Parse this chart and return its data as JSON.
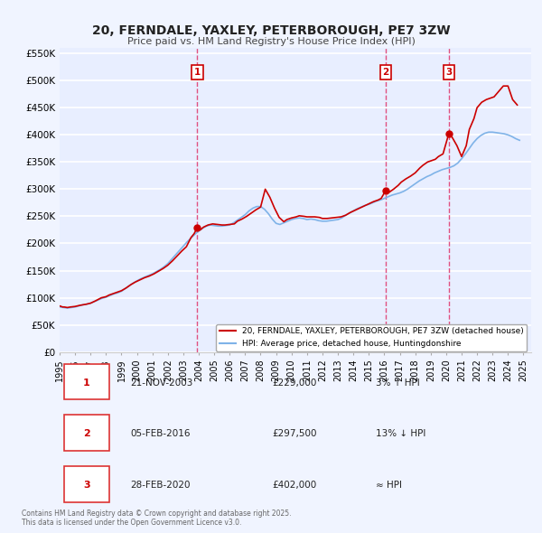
{
  "title": "20, FERNDALE, YAXLEY, PETERBOROUGH, PE7 3ZW",
  "subtitle": "Price paid vs. HM Land Registry's House Price Index (HPI)",
  "background_color": "#f0f4ff",
  "plot_bg_color": "#e8eeff",
  "grid_color": "#ffffff",
  "ylim": [
    0,
    560000
  ],
  "yticks": [
    0,
    50000,
    100000,
    150000,
    200000,
    250000,
    300000,
    350000,
    400000,
    450000,
    500000,
    550000
  ],
  "ytick_labels": [
    "£0",
    "£50K",
    "£100K",
    "£150K",
    "£200K",
    "£250K",
    "£300K",
    "£350K",
    "£400K",
    "£450K",
    "£500K",
    "£550K"
  ],
  "xmin": 1995.0,
  "xmax": 2025.5,
  "sale_color": "#cc0000",
  "hpi_color": "#7fb3e8",
  "marker_color": "#cc0000",
  "vline_color": "#e05080",
  "legend_label_sale": "20, FERNDALE, YAXLEY, PETERBOROUGH, PE7 3ZW (detached house)",
  "legend_label_hpi": "HPI: Average price, detached house, Huntingdonshire",
  "transactions": [
    {
      "num": 1,
      "date": 2003.9,
      "price": 229000,
      "x_vline": 2003.9
    },
    {
      "num": 2,
      "date": 2016.09,
      "price": 297500,
      "x_vline": 2016.09
    },
    {
      "num": 3,
      "date": 2020.17,
      "price": 402000,
      "x_vline": 2020.17
    }
  ],
  "table_rows": [
    {
      "num": "1",
      "date": "21-NOV-2003",
      "price": "£229,000",
      "hpi_rel": "3% ↑ HPI"
    },
    {
      "num": "2",
      "date": "05-FEB-2016",
      "price": "£297,500",
      "hpi_rel": "13% ↓ HPI"
    },
    {
      "num": "3",
      "date": "28-FEB-2020",
      "price": "£402,000",
      "hpi_rel": "≈ HPI"
    }
  ],
  "footnote": "Contains HM Land Registry data © Crown copyright and database right 2025.\nThis data is licensed under the Open Government Licence v3.0.",
  "hpi_data_x": [
    1995.0,
    1995.25,
    1995.5,
    1995.75,
    1996.0,
    1996.25,
    1996.5,
    1996.75,
    1997.0,
    1997.25,
    1997.5,
    1997.75,
    1998.0,
    1998.25,
    1998.5,
    1998.75,
    1999.0,
    1999.25,
    1999.5,
    1999.75,
    2000.0,
    2000.25,
    2000.5,
    2000.75,
    2001.0,
    2001.25,
    2001.5,
    2001.75,
    2002.0,
    2002.25,
    2002.5,
    2002.75,
    2003.0,
    2003.25,
    2003.5,
    2003.75,
    2004.0,
    2004.25,
    2004.5,
    2004.75,
    2005.0,
    2005.25,
    2005.5,
    2005.75,
    2006.0,
    2006.25,
    2006.5,
    2006.75,
    2007.0,
    2007.25,
    2007.5,
    2007.75,
    2008.0,
    2008.25,
    2008.5,
    2008.75,
    2009.0,
    2009.25,
    2009.5,
    2009.75,
    2010.0,
    2010.25,
    2010.5,
    2010.75,
    2011.0,
    2011.25,
    2011.5,
    2011.75,
    2012.0,
    2012.25,
    2012.5,
    2012.75,
    2013.0,
    2013.25,
    2013.5,
    2013.75,
    2014.0,
    2014.25,
    2014.5,
    2014.75,
    2015.0,
    2015.25,
    2015.5,
    2015.75,
    2016.0,
    2016.25,
    2016.5,
    2016.75,
    2017.0,
    2017.25,
    2017.5,
    2017.75,
    2018.0,
    2018.25,
    2018.5,
    2018.75,
    2019.0,
    2019.25,
    2019.5,
    2019.75,
    2020.0,
    2020.25,
    2020.5,
    2020.75,
    2021.0,
    2021.25,
    2021.5,
    2021.75,
    2022.0,
    2022.25,
    2022.5,
    2022.75,
    2023.0,
    2023.25,
    2023.5,
    2023.75,
    2024.0,
    2024.25,
    2024.5,
    2024.75
  ],
  "hpi_data_y": [
    83000,
    82000,
    81000,
    82000,
    83000,
    85000,
    87000,
    88000,
    90000,
    93000,
    96000,
    99000,
    101000,
    104000,
    107000,
    109000,
    112000,
    117000,
    122000,
    127000,
    131000,
    135000,
    138000,
    141000,
    144000,
    148000,
    152000,
    157000,
    163000,
    171000,
    179000,
    187000,
    195000,
    203000,
    210000,
    217000,
    223000,
    228000,
    232000,
    234000,
    233000,
    232000,
    232000,
    233000,
    234000,
    238000,
    243000,
    248000,
    253000,
    260000,
    265000,
    268000,
    268000,
    263000,
    255000,
    245000,
    237000,
    235000,
    238000,
    241000,
    244000,
    246000,
    247000,
    246000,
    244000,
    245000,
    244000,
    242000,
    241000,
    241000,
    242000,
    243000,
    244000,
    247000,
    252000,
    256000,
    260000,
    264000,
    267000,
    270000,
    272000,
    275000,
    278000,
    280000,
    283000,
    286000,
    289000,
    291000,
    293000,
    296000,
    300000,
    305000,
    310000,
    315000,
    319000,
    323000,
    326000,
    330000,
    333000,
    336000,
    338000,
    340000,
    343000,
    348000,
    356000,
    365000,
    375000,
    385000,
    393000,
    399000,
    403000,
    405000,
    405000,
    404000,
    403000,
    402000,
    400000,
    397000,
    393000,
    390000
  ],
  "sale_data_x": [
    1995.0,
    1995.1,
    1995.2,
    1995.3,
    1995.5,
    1995.7,
    1996.0,
    1996.3,
    1996.5,
    1996.7,
    1997.0,
    1997.3,
    1997.5,
    1997.7,
    1998.0,
    1998.2,
    1998.5,
    1998.7,
    1999.0,
    1999.3,
    1999.6,
    1999.9,
    2000.2,
    2000.5,
    2000.8,
    2001.1,
    2001.4,
    2001.7,
    2002.0,
    2002.3,
    2002.6,
    2002.9,
    2003.2,
    2003.5,
    2003.7,
    2003.9,
    2004.1,
    2004.3,
    2004.6,
    2004.9,
    2005.2,
    2005.5,
    2005.7,
    2006.0,
    2006.3,
    2006.5,
    2006.8,
    2007.1,
    2007.4,
    2007.7,
    2008.0,
    2008.3,
    2008.6,
    2008.9,
    2009.2,
    2009.5,
    2009.7,
    2010.0,
    2010.3,
    2010.5,
    2010.8,
    2011.0,
    2011.3,
    2011.5,
    2011.8,
    2012.0,
    2012.3,
    2012.6,
    2012.9,
    2013.2,
    2013.5,
    2013.8,
    2014.1,
    2014.4,
    2014.7,
    2015.0,
    2015.3,
    2015.6,
    2015.8,
    2016.09,
    2016.3,
    2016.6,
    2016.9,
    2017.1,
    2017.4,
    2017.7,
    2018.0,
    2018.3,
    2018.5,
    2018.8,
    2019.0,
    2019.3,
    2019.5,
    2019.8,
    2020.17,
    2020.4,
    2020.7,
    2021.0,
    2021.3,
    2021.5,
    2021.8,
    2022.0,
    2022.3,
    2022.6,
    2022.9,
    2023.1,
    2023.4,
    2023.7,
    2024.0,
    2024.3,
    2024.6
  ],
  "sale_data_y": [
    85000,
    84000,
    83000,
    83000,
    82000,
    83000,
    84000,
    86000,
    87000,
    88000,
    90000,
    94000,
    97000,
    100000,
    102000,
    105000,
    108000,
    110000,
    113000,
    118000,
    124000,
    129000,
    133000,
    137000,
    140000,
    144000,
    149000,
    154000,
    160000,
    168000,
    177000,
    186000,
    194000,
    211000,
    218000,
    229000,
    225000,
    230000,
    234000,
    236000,
    235000,
    234000,
    234000,
    235000,
    236000,
    241000,
    245000,
    250000,
    256000,
    262000,
    267000,
    300000,
    285000,
    265000,
    248000,
    240000,
    244000,
    247000,
    249000,
    251000,
    250000,
    249000,
    249000,
    249000,
    248000,
    246000,
    246000,
    247000,
    248000,
    249000,
    252000,
    257000,
    261000,
    265000,
    269000,
    273000,
    277000,
    280000,
    283000,
    297500,
    294000,
    300000,
    307000,
    313000,
    319000,
    324000,
    330000,
    339000,
    344000,
    350000,
    352000,
    355000,
    360000,
    365000,
    402000,
    395000,
    380000,
    360000,
    380000,
    410000,
    430000,
    450000,
    460000,
    465000,
    468000,
    470000,
    480000,
    490000,
    490000,
    465000,
    455000
  ]
}
